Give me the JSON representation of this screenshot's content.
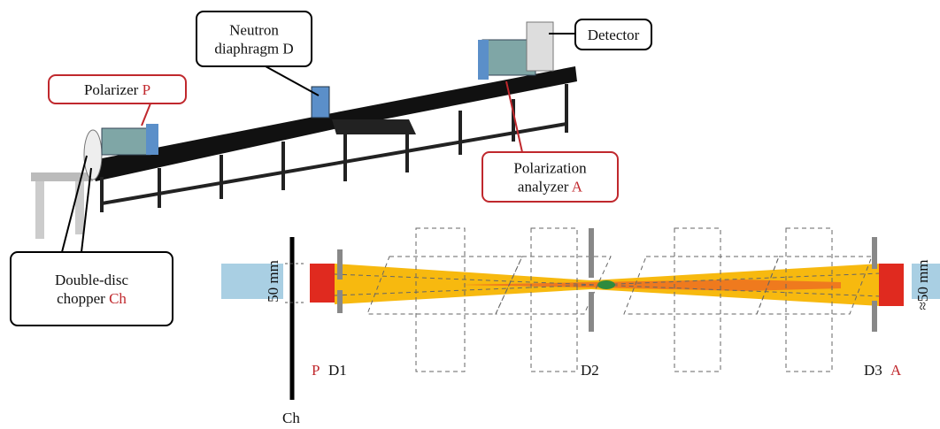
{
  "callouts": [
    {
      "lines": [
        "Neutron",
        "diaphragm D"
      ]
    },
    {
      "lines": [
        "Detector"
      ]
    },
    {
      "lines": [
        "Polarizer"
      ],
      "letter": "P"
    },
    {
      "lines": [
        "Polarization",
        "analyzer"
      ],
      "letter": "A"
    },
    {
      "lines": [
        "Double-disc",
        "chopper"
      ],
      "letter": "Ch"
    }
  ],
  "schematic": {
    "width_left": "50 mm",
    "width_right": "≈50 mm",
    "labels": {
      "P": "P",
      "D1": "D1",
      "D2": "D2",
      "D3": "D3",
      "A": "A",
      "Ch": "Ch"
    }
  }
}
